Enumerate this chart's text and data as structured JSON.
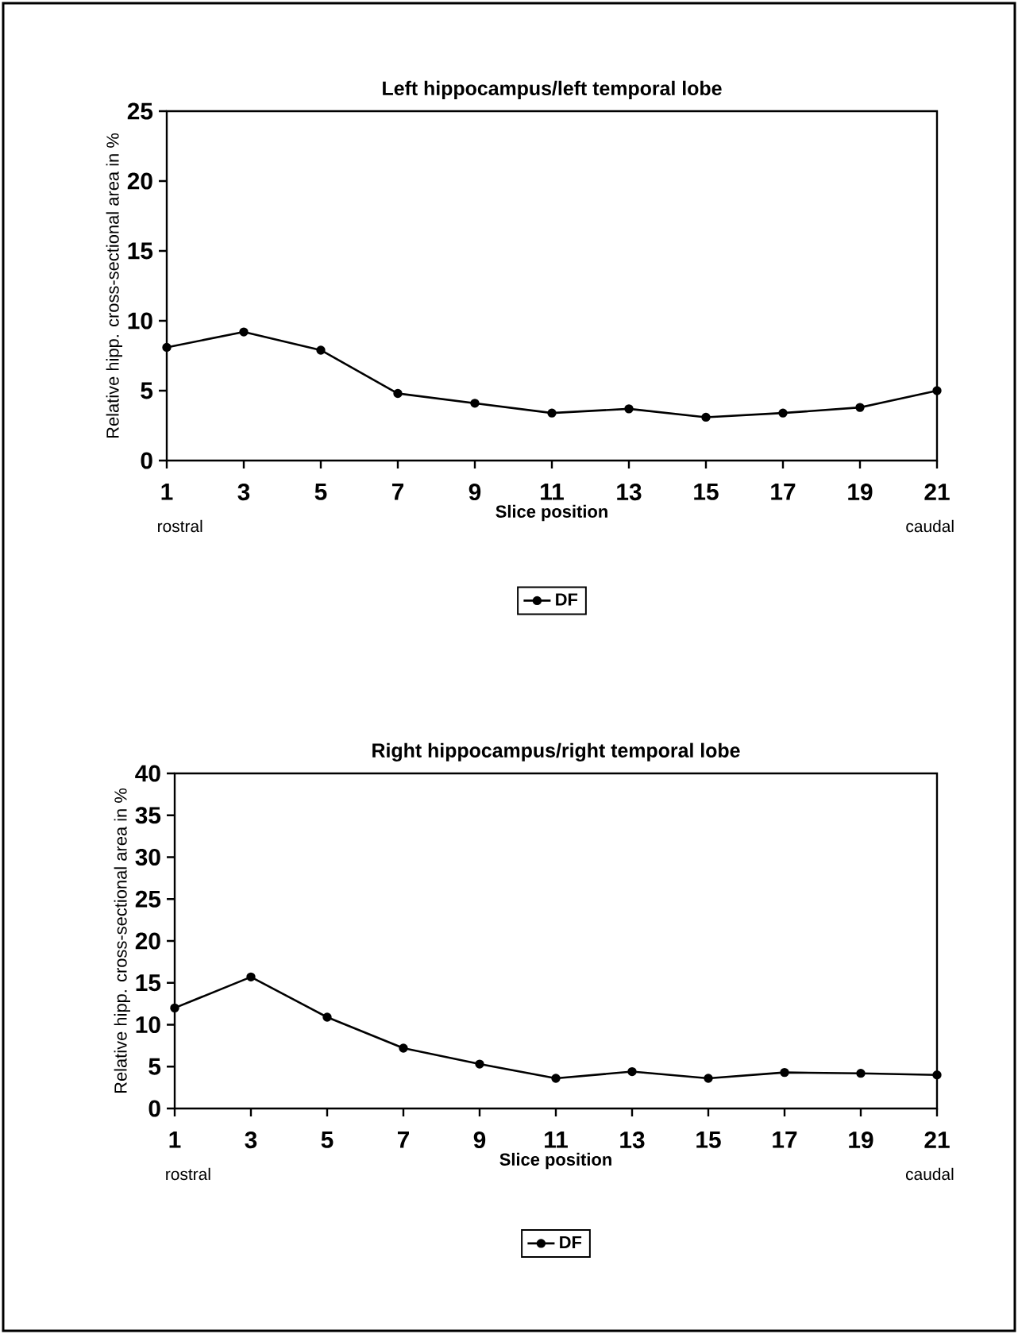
{
  "chart_data": [
    {
      "type": "line",
      "title": "Left hippocampus/left temporal lobe",
      "xlabel": "Slice position",
      "ylabel": "Relative hipp. cross-sectional area in %",
      "x": [
        1,
        3,
        5,
        7,
        9,
        11,
        13,
        15,
        17,
        19,
        21
      ],
      "series": [
        {
          "name": "DF",
          "color": "#000000",
          "values": [
            8.1,
            9.2,
            7.9,
            4.8,
            4.1,
            3.4,
            3.7,
            3.1,
            3.4,
            3.8,
            5.0
          ]
        }
      ],
      "xlim": [
        1,
        21
      ],
      "xticks": [
        1,
        3,
        5,
        7,
        9,
        11,
        13,
        15,
        17,
        19,
        21
      ],
      "ylim": [
        0,
        25
      ],
      "yticks": [
        0,
        5,
        10,
        15,
        20,
        25
      ],
      "marker": "circle",
      "line_style": "solid",
      "legend": "bottom",
      "grid": false,
      "annotations": [
        "rostral",
        "caudal"
      ]
    },
    {
      "type": "line",
      "title": "Right hippocampus/right temporal lobe",
      "xlabel": "Slice position",
      "ylabel": "Relative hipp. cross-sectional area in %",
      "x": [
        1,
        3,
        5,
        7,
        9,
        11,
        13,
        15,
        17,
        19,
        21
      ],
      "series": [
        {
          "name": "DF",
          "color": "#000000",
          "values": [
            12.0,
            15.7,
            10.9,
            7.2,
            5.3,
            3.6,
            4.4,
            3.6,
            4.3,
            4.2,
            4.0
          ]
        }
      ],
      "xlim": [
        1,
        21
      ],
      "xticks": [
        1,
        3,
        5,
        7,
        9,
        11,
        13,
        15,
        17,
        19,
        21
      ],
      "ylim": [
        0,
        40
      ],
      "yticks": [
        0,
        5,
        10,
        15,
        20,
        25,
        30,
        35,
        40
      ],
      "marker": "circle",
      "line_style": "solid",
      "legend": "bottom",
      "grid": false,
      "annotations": [
        "rostral",
        "caudal"
      ]
    }
  ]
}
